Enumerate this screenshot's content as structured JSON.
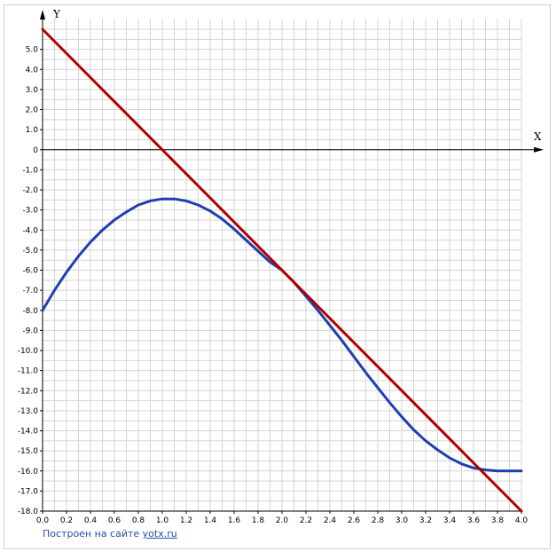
{
  "chart_data": {
    "type": "line",
    "xlabel": "X",
    "ylabel": "Y",
    "xlim": [
      0,
      4
    ],
    "ylim": [
      -18,
      6
    ],
    "grid": true,
    "x_ticks": [
      "0.0",
      "0.2",
      "0.4",
      "0.6",
      "0.8",
      "1.0",
      "1.2",
      "1.4",
      "1.6",
      "1.8",
      "2.0",
      "2.2",
      "2.4",
      "2.6",
      "2.8",
      "3.0",
      "3.2",
      "3.4",
      "3.6",
      "3.8",
      "4.0"
    ],
    "y_ticks": [
      "5.0",
      "4.0",
      "3.0",
      "2.0",
      "1.0",
      "0",
      "-1.0",
      "-2.0",
      "-3.0",
      "-4.0",
      "-5.0",
      "-6.0",
      "-7.0",
      "-8.0",
      "-9.0",
      "-10.0",
      "-11.0",
      "-12.0",
      "-13.0",
      "-14.0",
      "-15.0",
      "-16.0",
      "-17.0",
      "-18.0"
    ],
    "series": [
      {
        "color": "#1f3fb0",
        "x": [
          0.0,
          0.1,
          0.2,
          0.3,
          0.4,
          0.5,
          0.6,
          0.7,
          0.8,
          0.9,
          1.0,
          1.1,
          1.2,
          1.3,
          1.4,
          1.5,
          1.6,
          1.7,
          1.8,
          1.9,
          2.0,
          2.1,
          2.2,
          2.3,
          2.4,
          2.5,
          2.6,
          2.7,
          2.8,
          2.9,
          3.0,
          3.1,
          3.2,
          3.3,
          3.4,
          3.5,
          3.6,
          3.7,
          3.8,
          3.9,
          4.0
        ],
        "values": [
          -8.0,
          -7.0,
          -6.1,
          -5.3,
          -4.6,
          -4.0,
          -3.5,
          -3.1,
          -2.75,
          -2.55,
          -2.45,
          -2.45,
          -2.55,
          -2.75,
          -3.05,
          -3.45,
          -3.95,
          -4.5,
          -5.05,
          -5.6,
          -6.0,
          -6.6,
          -7.3,
          -8.0,
          -8.75,
          -9.5,
          -10.3,
          -11.1,
          -11.85,
          -12.6,
          -13.3,
          -13.95,
          -14.5,
          -14.95,
          -15.35,
          -15.65,
          -15.85,
          -15.95,
          -16.0,
          -16.0,
          -16.0
        ]
      },
      {
        "color": "#b00000",
        "x": [
          0.0,
          4.0
        ],
        "values": [
          6.0,
          -18.0
        ]
      }
    ]
  },
  "footer": {
    "prefix": "Построен на сайте ",
    "link": "yotx.ru"
  }
}
